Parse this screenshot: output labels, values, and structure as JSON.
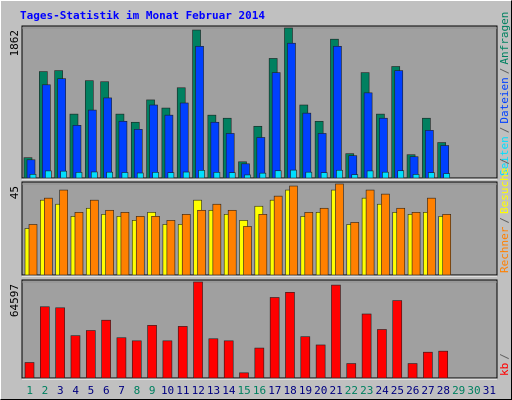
{
  "chart_data": [
    {
      "type": "bar",
      "title": "Tages-Statistik im Monat Februar 2014",
      "ylim": [
        0,
        1862
      ],
      "yticks": [
        1862
      ],
      "series": [
        {
          "name": "Anfragen",
          "color": "#008060",
          "values": [
            252,
            1321,
            1333,
            793,
            1208,
            1195,
            793,
            692,
            969,
            868,
            1120,
            1837,
            780,
            742,
            201,
            642,
            1484,
            1862,
            906,
            704,
            1723,
            302,
            1308,
            793,
            1384,
            289,
            742,
            440,
            null,
            null,
            null
          ]
        },
        {
          "name": "Dateien",
          "color": "#0040ff",
          "values": [
            226,
            1157,
            1233,
            654,
            843,
            994,
            704,
            604,
            906,
            780,
            931,
            1635,
            692,
            553,
            176,
            503,
            1308,
            1673,
            805,
            553,
            1635,
            277,
            1057,
            742,
            1333,
            264,
            591,
            403,
            null,
            null,
            null
          ]
        },
        {
          "name": "Seiten",
          "color": "#00e0ff",
          "values": [
            45,
            88,
            85,
            70,
            75,
            72,
            68,
            62,
            70,
            66,
            74,
            95,
            70,
            66,
            38,
            60,
            90,
            98,
            72,
            66,
            96,
            42,
            88,
            72,
            90,
            44,
            66,
            55,
            null,
            null,
            null
          ]
        }
      ]
    },
    {
      "type": "bar",
      "ylim": [
        0,
        45
      ],
      "yticks": [
        45
      ],
      "series": [
        {
          "name": "Besuche",
          "color": "#ffff00",
          "values": [
            23,
            37,
            35,
            29,
            33,
            30,
            29,
            27,
            31,
            25,
            25,
            37,
            32,
            30,
            27,
            34,
            37,
            42,
            29,
            31,
            42,
            25,
            38,
            35,
            31,
            30,
            31,
            29,
            null,
            null,
            null
          ]
        },
        {
          "name": "Rechner",
          "color": "#ff8000",
          "values": [
            25,
            38,
            42,
            31,
            37,
            32,
            31,
            29,
            29,
            27,
            30,
            32,
            35,
            32,
            24,
            30,
            39,
            44,
            31,
            33,
            45,
            26,
            42,
            40,
            33,
            31,
            38,
            30,
            null,
            null,
            null
          ]
        }
      ]
    },
    {
      "type": "bar",
      "ylim": [
        0,
        64597
      ],
      "yticks": [
        64597
      ],
      "categories": [
        "1",
        "2",
        "3",
        "4",
        "5",
        "6",
        "7",
        "8",
        "9",
        "10",
        "11",
        "12",
        "13",
        "14",
        "15",
        "16",
        "17",
        "18",
        "19",
        "20",
        "21",
        "22",
        "23",
        "24",
        "25",
        "26",
        "27",
        "28",
        "29",
        "30",
        "31"
      ],
      "category_colors": [
        "#008060",
        "#008060",
        "#000080",
        "#000080",
        "#000080",
        "#000080",
        "#000080",
        "#008060",
        "#008060",
        "#000080",
        "#000080",
        "#000080",
        "#000080",
        "#000080",
        "#008060",
        "#008060",
        "#000080",
        "#000080",
        "#000080",
        "#000080",
        "#000080",
        "#008060",
        "#008060",
        "#000080",
        "#000080",
        "#000080",
        "#000080",
        "#000080",
        "#008060",
        "#008060",
        "#000080"
      ],
      "series": [
        {
          "name": "kb",
          "color": "#ff0000",
          "values": [
            10419,
            47927,
            47233,
            28479,
            31952,
            38898,
            27089,
            25006,
            35425,
            25006,
            34730,
            64597,
            26395,
            25006,
            3473,
            20143,
            54179,
            57652,
            27784,
            22227,
            62514,
            9724,
            43065,
            32646,
            52095,
            9724,
            17365,
            18060,
            null,
            null,
            null
          ]
        }
      ]
    }
  ],
  "legend_separator": "/"
}
